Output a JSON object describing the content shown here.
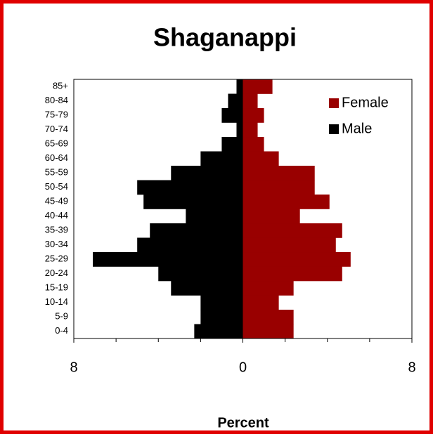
{
  "chart_data": {
    "type": "pyramid",
    "title": "Shaganappi",
    "x_label": "Percent",
    "categories": [
      "0-4",
      "5-9",
      "10-14",
      "15-19",
      "20-24",
      "25-29",
      "30-34",
      "35-39",
      "40-44",
      "45-49",
      "50-54",
      "55-59",
      "60-64",
      "65-69",
      "70-74",
      "75-79",
      "80-84",
      "85+"
    ],
    "series": [
      {
        "name": "Female",
        "color": "#990000",
        "values": [
          2.4,
          2.4,
          1.7,
          2.4,
          4.7,
          5.1,
          4.4,
          4.7,
          2.7,
          4.1,
          3.4,
          3.4,
          1.7,
          1.0,
          0.7,
          1.0,
          0.7,
          1.4
        ]
      },
      {
        "name": "Male",
        "color": "#000000",
        "values": [
          -2.3,
          -2.0,
          -2.0,
          -3.4,
          -4.0,
          -7.1,
          -5.0,
          -4.4,
          -2.7,
          -4.7,
          -5.0,
          -3.4,
          -2.0,
          -1.0,
          -0.3,
          -1.0,
          -0.7,
          -0.3
        ]
      }
    ],
    "xlim": [
      -8,
      8
    ],
    "xticks": [
      {
        "value": -8,
        "label": "8"
      },
      0,
      8
    ],
    "xminor_ticks": [
      -6,
      -4,
      -2,
      2,
      4,
      6
    ],
    "legend": "upper right"
  }
}
